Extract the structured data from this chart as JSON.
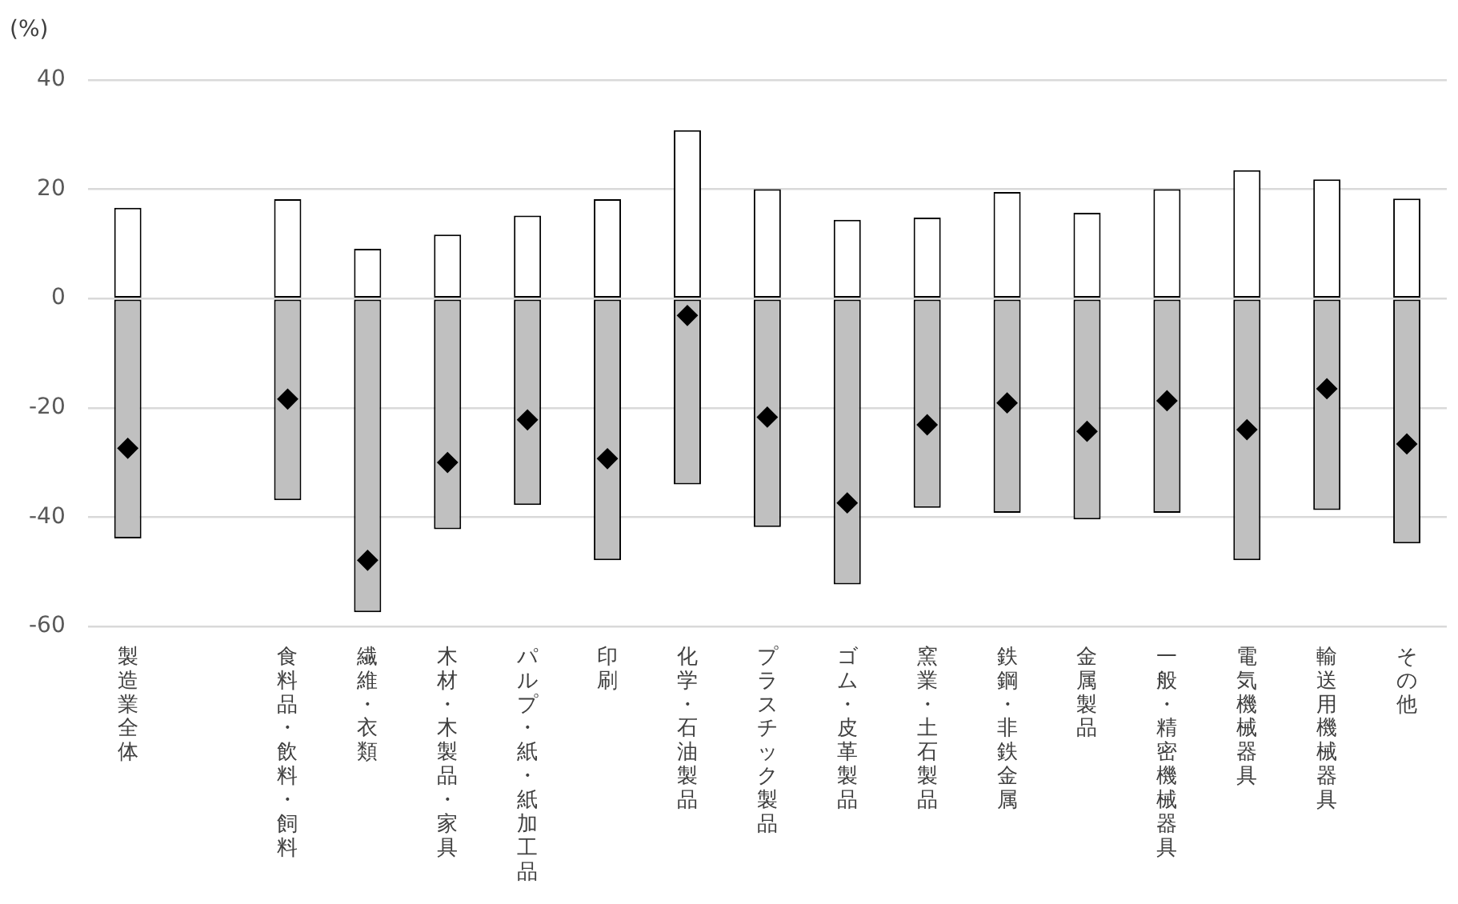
{
  "chart_data": {
    "type": "bar",
    "ylabel": "(%)",
    "stacked": true,
    "grid": "y",
    "legend": false,
    "categories": [
      "製造業全体",
      null,
      "食料品・飲料・飼料",
      "繊維・衣類",
      "木材・木製品・家具",
      "パルプ・紙・紙加工品",
      "印刷",
      "化学・石油製品",
      "プラスチック製品",
      "ゴム・皮革製品",
      "窯業・土石製品",
      "鉄鋼・非鉄金属",
      "金属製品",
      "一般・精密機械器具",
      "電気機械器具",
      "輸送用機械器具",
      "その他"
    ],
    "series": [
      {
        "color": "#ffffff",
        "values": [
          16.6,
          null,
          18.2,
          9.1,
          11.7,
          15.2,
          18.2,
          30.8,
          20.0,
          14.4,
          14.8,
          19.5,
          15.7,
          20.0,
          23.5,
          21.8,
          18.3
        ]
      },
      {
        "color": "#c0c0c0",
        "values": [
          -43.9,
          null,
          -36.9,
          -57.4,
          -42.2,
          -37.8,
          -47.9,
          -34.0,
          -41.8,
          -52.3,
          -38.3,
          -39.2,
          -40.4,
          -39.2,
          -47.9,
          -38.7,
          -44.8
        ]
      },
      {
        "type": "scatter",
        "color": "#000000",
        "marker": "diamond",
        "values": [
          -27.4,
          null,
          -18.4,
          -47.9,
          -30.0,
          -22.2,
          -29.3,
          -3.1,
          -21.7,
          -37.4,
          -23.1,
          -19.1,
          -24.3,
          -18.7,
          -24.0,
          -16.5,
          -26.6
        ]
      }
    ],
    "ylim": [
      -60,
      40
    ],
    "yticks": [
      -60,
      -40,
      -20,
      0,
      20,
      40
    ]
  }
}
